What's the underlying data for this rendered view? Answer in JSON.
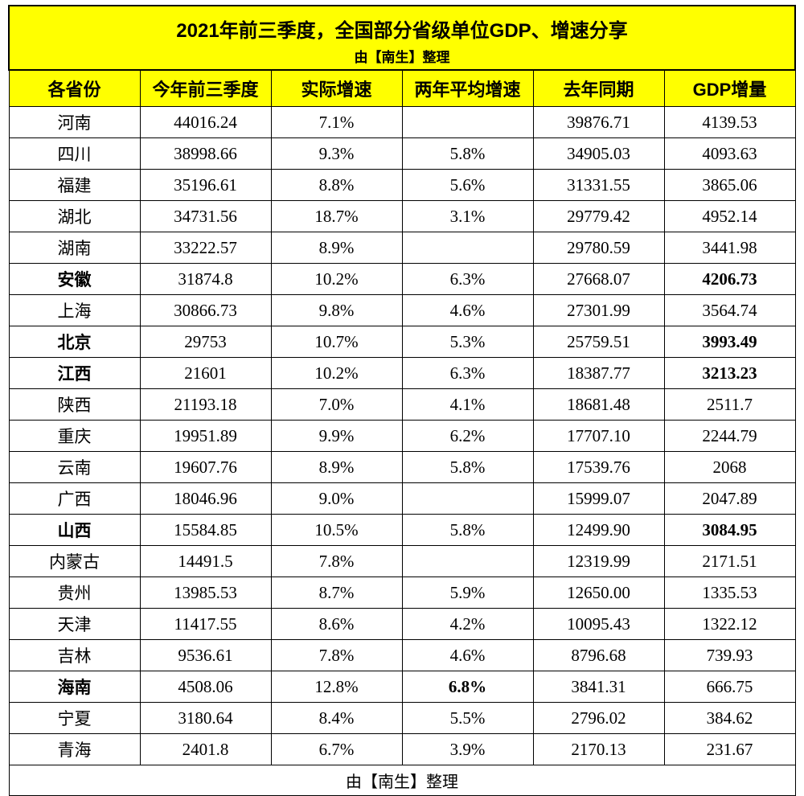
{
  "title": {
    "main": "2021年前三季度，全国部分省级单位GDP、增速分享",
    "sub": "由【南生】整理"
  },
  "footer": "由【南生】整理",
  "style": {
    "header_bg": "#ffff00",
    "cell_bg": "#ffffff",
    "border_color": "#000000",
    "text_color": "#000000",
    "title_fontsize": 24,
    "header_fontsize": 22,
    "cell_fontsize": 21
  },
  "table": {
    "type": "table",
    "columns": [
      {
        "key": "province",
        "label": "各省份",
        "width": "14.5%"
      },
      {
        "key": "q3_2021",
        "label": "今年前三季度",
        "width": "17.5%"
      },
      {
        "key": "growth",
        "label": "实际增速",
        "width": "15%"
      },
      {
        "key": "avg2y",
        "label": "两年平均增速",
        "width": "18%"
      },
      {
        "key": "lastyear",
        "label": "去年同期",
        "width": "18%"
      },
      {
        "key": "increase",
        "label": "GDP增量",
        "width": "17%"
      }
    ],
    "rows": [
      {
        "province": "河南",
        "q3_2021": "44016.24",
        "growth": "7.1%",
        "avg2y": "",
        "lastyear": "39876.71",
        "increase": "4139.53",
        "bold": {}
      },
      {
        "province": "四川",
        "q3_2021": "38998.66",
        "growth": "9.3%",
        "avg2y": "5.8%",
        "lastyear": "34905.03",
        "increase": "4093.63",
        "bold": {}
      },
      {
        "province": "福建",
        "q3_2021": "35196.61",
        "growth": "8.8%",
        "avg2y": "5.6%",
        "lastyear": "31331.55",
        "increase": "3865.06",
        "bold": {}
      },
      {
        "province": "湖北",
        "q3_2021": "34731.56",
        "growth": "18.7%",
        "avg2y": "3.1%",
        "lastyear": "29779.42",
        "increase": "4952.14",
        "bold": {}
      },
      {
        "province": "湖南",
        "q3_2021": "33222.57",
        "growth": "8.9%",
        "avg2y": "",
        "lastyear": "29780.59",
        "increase": "3441.98",
        "bold": {}
      },
      {
        "province": "安徽",
        "q3_2021": "31874.8",
        "growth": "10.2%",
        "avg2y": "6.3%",
        "lastyear": "27668.07",
        "increase": "4206.73",
        "bold": {
          "province": true,
          "increase": true
        }
      },
      {
        "province": "上海",
        "q3_2021": "30866.73",
        "growth": "9.8%",
        "avg2y": "4.6%",
        "lastyear": "27301.99",
        "increase": "3564.74",
        "bold": {}
      },
      {
        "province": "北京",
        "q3_2021": "29753",
        "growth": "10.7%",
        "avg2y": "5.3%",
        "lastyear": "25759.51",
        "increase": "3993.49",
        "bold": {
          "province": true,
          "increase": true
        }
      },
      {
        "province": "江西",
        "q3_2021": "21601",
        "growth": "10.2%",
        "avg2y": "6.3%",
        "lastyear": "18387.77",
        "increase": "3213.23",
        "bold": {
          "province": true,
          "increase": true
        }
      },
      {
        "province": "陕西",
        "q3_2021": "21193.18",
        "growth": "7.0%",
        "avg2y": "4.1%",
        "lastyear": "18681.48",
        "increase": "2511.7",
        "bold": {}
      },
      {
        "province": "重庆",
        "q3_2021": "19951.89",
        "growth": "9.9%",
        "avg2y": "6.2%",
        "lastyear": "17707.10",
        "increase": "2244.79",
        "bold": {}
      },
      {
        "province": "云南",
        "q3_2021": "19607.76",
        "growth": "8.9%",
        "avg2y": "5.8%",
        "lastyear": "17539.76",
        "increase": "2068",
        "bold": {}
      },
      {
        "province": "广西",
        "q3_2021": "18046.96",
        "growth": "9.0%",
        "avg2y": "",
        "lastyear": "15999.07",
        "increase": "2047.89",
        "bold": {}
      },
      {
        "province": "山西",
        "q3_2021": "15584.85",
        "growth": "10.5%",
        "avg2y": "5.8%",
        "lastyear": "12499.90",
        "increase": "3084.95",
        "bold": {
          "province": true,
          "increase": true
        }
      },
      {
        "province": "内蒙古",
        "q3_2021": "14491.5",
        "growth": "7.8%",
        "avg2y": "",
        "lastyear": "12319.99",
        "increase": "2171.51",
        "bold": {}
      },
      {
        "province": "贵州",
        "q3_2021": "13985.53",
        "growth": "8.7%",
        "avg2y": "5.9%",
        "lastyear": "12650.00",
        "increase": "1335.53",
        "bold": {}
      },
      {
        "province": "天津",
        "q3_2021": "11417.55",
        "growth": "8.6%",
        "avg2y": "4.2%",
        "lastyear": "10095.43",
        "increase": "1322.12",
        "bold": {}
      },
      {
        "province": "吉林",
        "q3_2021": "9536.61",
        "growth": "7.8%",
        "avg2y": "4.6%",
        "lastyear": "8796.68",
        "increase": "739.93",
        "bold": {}
      },
      {
        "province": "海南",
        "q3_2021": "4508.06",
        "growth": "12.8%",
        "avg2y": "6.8%",
        "lastyear": "3841.31",
        "increase": "666.75",
        "bold": {
          "province": true,
          "avg2y": true
        }
      },
      {
        "province": "宁夏",
        "q3_2021": "3180.64",
        "growth": "8.4%",
        "avg2y": "5.5%",
        "lastyear": "2796.02",
        "increase": "384.62",
        "bold": {}
      },
      {
        "province": "青海",
        "q3_2021": "2401.8",
        "growth": "6.7%",
        "avg2y": "3.9%",
        "lastyear": "2170.13",
        "increase": "231.67",
        "bold": {}
      }
    ]
  }
}
